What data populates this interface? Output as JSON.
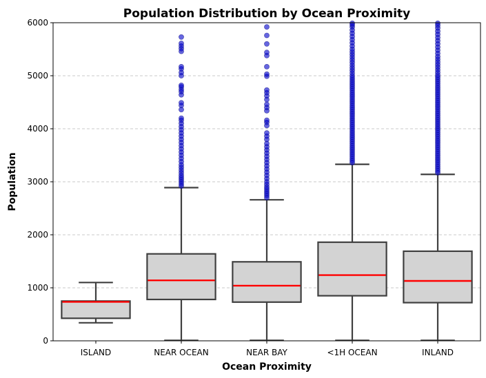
{
  "chart_data": {
    "type": "box",
    "title": "Population Distribution by Ocean Proximity",
    "xlabel": "Ocean Proximity",
    "ylabel": "Population",
    "ylim": [
      0,
      6000
    ],
    "yticks": [
      0,
      1000,
      2000,
      3000,
      4000,
      5000,
      6000
    ],
    "grid": "y-dashed",
    "colors": {
      "box_fill": "#d3d3d3",
      "box_edge": "#3f3f3f",
      "median": "#ff0000",
      "outlier": "#0000cc",
      "grid": "#c8c8c8"
    },
    "categories": [
      "ISLAND",
      "NEAR OCEAN",
      "NEAR BAY",
      "<1H OCEAN",
      "INLAND"
    ],
    "boxes": [
      {
        "category": "ISLAND",
        "whisker_low": 340,
        "q1": 425,
        "median": 735,
        "q3": 750,
        "whisker_high": 1100,
        "outliers": []
      },
      {
        "category": "NEAR OCEAN",
        "whisker_low": 8,
        "q1": 780,
        "median": 1140,
        "q3": 1640,
        "whisker_high": 2890,
        "outliers": [
          2920,
          2960,
          3000,
          3040,
          3080,
          3120,
          3170,
          3220,
          3270,
          3320,
          3380,
          3440,
          3500,
          3560,
          3620,
          3680,
          3740,
          3800,
          3860,
          3920,
          3980,
          4040,
          4100,
          4160,
          4200,
          4360,
          4440,
          4490,
          4640,
          4700,
          4740,
          4790,
          4820,
          5000,
          5060,
          5130,
          5170,
          5460,
          5510,
          5560,
          5610,
          5730
        ]
      },
      {
        "category": "NEAR BAY",
        "whisker_low": 8,
        "q1": 730,
        "median": 1040,
        "q3": 1490,
        "whisker_high": 2660,
        "outliers": [
          2700,
          2740,
          2780,
          2820,
          2860,
          2900,
          2950,
          3000,
          3060,
          3120,
          3180,
          3240,
          3300,
          3360,
          3420,
          3480,
          3540,
          3600,
          3660,
          3720,
          3800,
          3860,
          3920,
          4060,
          4120,
          4160,
          4340,
          4400,
          4460,
          4550,
          4620,
          4680,
          4730,
          4990,
          5030,
          5170,
          5380,
          5440,
          5600,
          5760,
          5920
        ]
      },
      {
        "category": "<1H OCEAN",
        "whisker_low": 8,
        "q1": 850,
        "median": 1240,
        "q3": 1860,
        "whisker_high": 3330,
        "outliers": [
          3360,
          3400,
          3440,
          3480,
          3520,
          3560,
          3600,
          3640,
          3680,
          3720,
          3760,
          3800,
          3840,
          3880,
          3920,
          3960,
          4000,
          4040,
          4080,
          4120,
          4160,
          4200,
          4240,
          4280,
          4320,
          4360,
          4400,
          4440,
          4480,
          4520,
          4560,
          4600,
          4640,
          4680,
          4720,
          4760,
          4800,
          4840,
          4880,
          4920,
          4960,
          5000,
          5050,
          5100,
          5150,
          5200,
          5250,
          5300,
          5350,
          5400,
          5450,
          5500,
          5560,
          5620,
          5680,
          5740,
          5800,
          5860,
          5920,
          5960,
          5990
        ]
      },
      {
        "category": "INLAND",
        "whisker_low": 8,
        "q1": 720,
        "median": 1130,
        "q3": 1690,
        "whisker_high": 3140,
        "outliers": [
          3170,
          3210,
          3250,
          3290,
          3330,
          3370,
          3410,
          3450,
          3490,
          3530,
          3570,
          3610,
          3650,
          3690,
          3730,
          3770,
          3810,
          3850,
          3890,
          3930,
          3970,
          4010,
          4050,
          4090,
          4130,
          4170,
          4210,
          4250,
          4290,
          4330,
          4370,
          4410,
          4450,
          4490,
          4530,
          4570,
          4610,
          4650,
          4690,
          4730,
          4770,
          4810,
          4850,
          4890,
          4930,
          4970,
          5010,
          5060,
          5110,
          5160,
          5210,
          5260,
          5310,
          5360,
          5420,
          5480,
          5540,
          5600,
          5660,
          5720,
          5780,
          5840,
          5900,
          5950,
          5990
        ]
      }
    ]
  }
}
